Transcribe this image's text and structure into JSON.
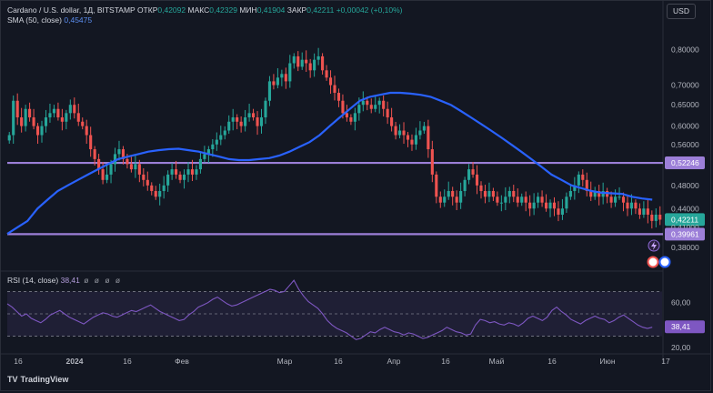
{
  "header": {
    "symbol": "Cardano / U.S. dollar, 1Д, BITSTAMP",
    "open_label": "ОТКР",
    "open": "0,42092",
    "high_label": "МАКС",
    "high": "0,42329",
    "low_label": "МИН",
    "low": "0,41904",
    "close_label": "ЗАКР",
    "close": "0,42211",
    "change": "+0,00042 (+0,10%)",
    "sma_label": "SMA (50, close)",
    "sma_value": "0,45475",
    "currency": "USD"
  },
  "rsi": {
    "label": "RSI (14, close)",
    "value": "38,41",
    "extra": "ø ø ø ø"
  },
  "branding": {
    "name": "TradingView"
  },
  "colors": {
    "background": "#131722",
    "up": "#26a69a",
    "down": "#ef5350",
    "sma": "#2962ff",
    "level": "#9c7fd8",
    "rsi": "#7e57c2"
  },
  "chart_data": [
    {
      "type": "candlestick",
      "title": "Cardano / U.S. dollar, 1Д, BITSTAMP",
      "x_ticks": [
        "16",
        "2024",
        "16",
        "Фев",
        "Мар",
        "16",
        "Апр",
        "16",
        "Май",
        "16",
        "Июн",
        "17"
      ],
      "y_ticks": [
        "0,80000",
        "0,70000",
        "0,65000",
        "0,60000",
        "0,56000",
        "0,48000",
        "0,44000",
        "0,38000"
      ],
      "price_labels": [
        {
          "text": "0,52246",
          "kind": "level"
        },
        {
          "text": "0,42211",
          "kind": "last"
        },
        {
          "text": "0,41000",
          "kind": "tick"
        },
        {
          "text": "0,39961",
          "kind": "level"
        }
      ],
      "levels": [
        0.52246,
        0.39961
      ],
      "ylim": [
        0.355,
        0.87
      ],
      "scale": "log",
      "close_series": [
        0.58,
        0.66,
        0.62,
        0.6,
        0.64,
        0.62,
        0.6,
        0.58,
        0.6,
        0.62,
        0.63,
        0.64,
        0.62,
        0.61,
        0.63,
        0.65,
        0.63,
        0.61,
        0.6,
        0.58,
        0.55,
        0.53,
        0.51,
        0.49,
        0.5,
        0.52,
        0.54,
        0.55,
        0.53,
        0.52,
        0.51,
        0.52,
        0.5,
        0.49,
        0.48,
        0.47,
        0.46,
        0.47,
        0.48,
        0.5,
        0.51,
        0.5,
        0.49,
        0.5,
        0.51,
        0.5,
        0.51,
        0.53,
        0.54,
        0.55,
        0.56,
        0.57,
        0.58,
        0.59,
        0.61,
        0.62,
        0.61,
        0.6,
        0.62,
        0.63,
        0.62,
        0.6,
        0.62,
        0.66,
        0.71,
        0.7,
        0.72,
        0.73,
        0.71,
        0.76,
        0.78,
        0.75,
        0.77,
        0.76,
        0.74,
        0.77,
        0.78,
        0.74,
        0.72,
        0.7,
        0.68,
        0.66,
        0.63,
        0.62,
        0.61,
        0.63,
        0.65,
        0.66,
        0.65,
        0.64,
        0.65,
        0.66,
        0.64,
        0.62,
        0.6,
        0.58,
        0.59,
        0.58,
        0.57,
        0.56,
        0.58,
        0.59,
        0.6,
        0.55,
        0.5,
        0.46,
        0.45,
        0.46,
        0.47,
        0.46,
        0.45,
        0.47,
        0.49,
        0.51,
        0.5,
        0.48,
        0.47,
        0.46,
        0.47,
        0.46,
        0.45,
        0.45,
        0.46,
        0.47,
        0.46,
        0.45,
        0.46,
        0.45,
        0.44,
        0.45,
        0.46,
        0.45,
        0.44,
        0.45,
        0.44,
        0.43,
        0.44,
        0.46,
        0.47,
        0.48,
        0.5,
        0.49,
        0.47,
        0.46,
        0.47,
        0.46,
        0.47,
        0.46,
        0.45,
        0.46,
        0.46,
        0.45,
        0.44,
        0.45,
        0.44,
        0.43,
        0.44,
        0.43,
        0.42,
        0.43,
        0.422
      ],
      "sma_series": [
        0.4,
        0.41,
        0.42,
        0.44,
        0.455,
        0.47,
        0.48,
        0.49,
        0.5,
        0.51,
        0.52,
        0.53,
        0.535,
        0.54,
        0.545,
        0.548,
        0.55,
        0.551,
        0.548,
        0.545,
        0.54,
        0.535,
        0.53,
        0.528,
        0.528,
        0.53,
        0.532,
        0.537,
        0.545,
        0.555,
        0.565,
        0.58,
        0.6,
        0.62,
        0.64,
        0.66,
        0.67,
        0.675,
        0.68,
        0.68,
        0.678,
        0.675,
        0.67,
        0.66,
        0.65,
        0.635,
        0.62,
        0.605,
        0.59,
        0.575,
        0.56,
        0.545,
        0.53,
        0.515,
        0.5,
        0.49,
        0.48,
        0.475,
        0.47,
        0.467,
        0.466,
        0.465,
        0.46,
        0.457,
        0.455
      ],
      "rsi": {
        "name": "RSI (14, close)",
        "y_ticks": [
          "60,00",
          "40,00",
          "20,00"
        ],
        "ylim": [
          15,
          85
        ],
        "values": [
          59,
          56,
          52,
          48,
          50,
          46,
          44,
          42,
          45,
          49,
          51,
          53,
          50,
          47,
          45,
          43,
          41,
          44,
          47,
          49,
          51,
          50,
          48,
          47,
          49,
          51,
          53,
          52,
          54,
          56,
          58,
          55,
          52,
          50,
          48,
          46,
          44,
          45,
          49,
          52,
          56,
          58,
          60,
          63,
          65,
          62,
          59,
          57,
          58,
          60,
          62,
          64,
          66,
          68,
          70,
          72,
          71,
          69,
          70,
          75,
          80,
          72,
          66,
          61,
          58,
          55,
          50,
          44,
          40,
          37,
          35,
          33,
          30,
          27,
          28,
          31,
          34,
          33,
          36,
          38,
          36,
          34,
          33,
          31,
          33,
          32,
          30,
          28,
          29,
          31,
          33,
          35,
          38,
          36,
          34,
          33,
          31,
          32,
          40,
          45,
          44,
          42,
          43,
          41,
          40,
          42,
          41,
          39,
          42,
          46,
          48,
          46,
          44,
          47,
          53,
          56,
          52,
          49,
          45,
          43,
          41,
          44,
          46,
          48,
          46,
          45,
          42,
          44,
          47,
          49,
          46,
          43,
          40,
          38,
          37,
          38
        ],
        "levels": [
          70,
          50,
          30
        ]
      }
    }
  ]
}
